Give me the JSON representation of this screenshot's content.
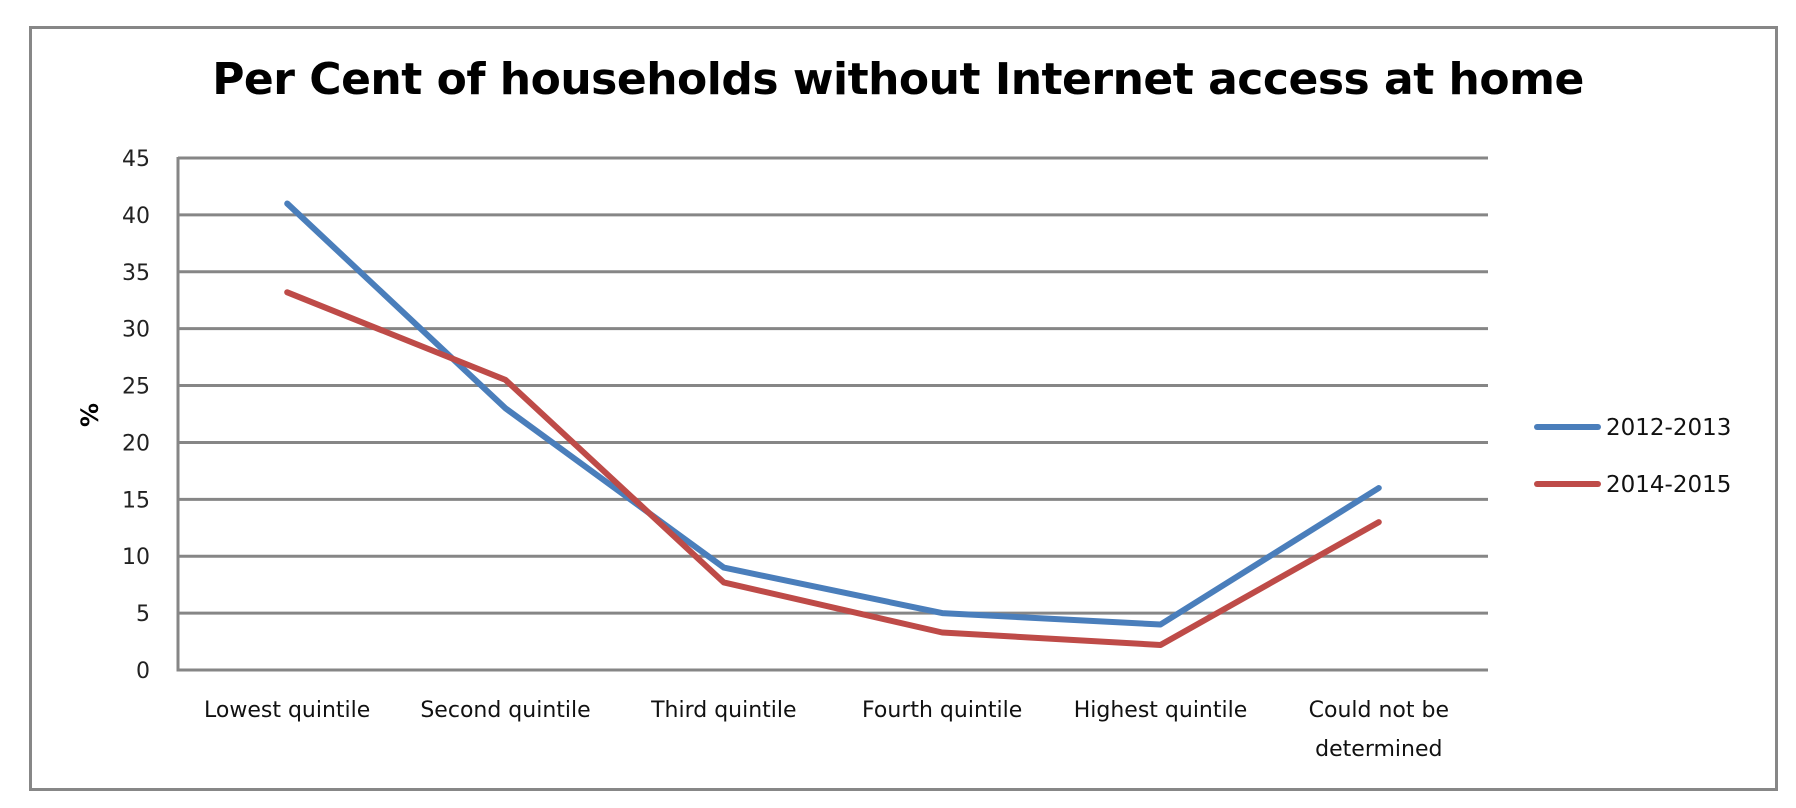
{
  "chart_data": {
    "type": "line",
    "title": "Per Cent of households without Internet access at home",
    "xlabel": "",
    "ylabel": "%",
    "ylim": [
      0,
      45
    ],
    "yticks": [
      0,
      5,
      10,
      15,
      20,
      25,
      30,
      35,
      40,
      45
    ],
    "grid": true,
    "legend_position": "right",
    "categories": [
      "Lowest quintile",
      "Second quintile",
      "Third quintile",
      "Fourth quintile",
      "Highest quintile",
      "Could not be determined"
    ],
    "category_lines": [
      [
        "Lowest quintile"
      ],
      [
        "Second quintile"
      ],
      [
        "Third quintile"
      ],
      [
        "Fourth quintile"
      ],
      [
        "Highest quintile"
      ],
      [
        "Could not be",
        "determined"
      ]
    ],
    "series": [
      {
        "name": "2012-2013",
        "color": "#4a7ebb",
        "values": [
          41,
          23,
          9,
          5,
          4,
          16
        ]
      },
      {
        "name": "2014-2015",
        "color": "#be4b48",
        "values": [
          33.2,
          25.5,
          7.7,
          3.3,
          2.2,
          13
        ]
      }
    ]
  },
  "colors": {
    "frame": "#878787",
    "gridline": "#868686",
    "text": "#111111"
  }
}
